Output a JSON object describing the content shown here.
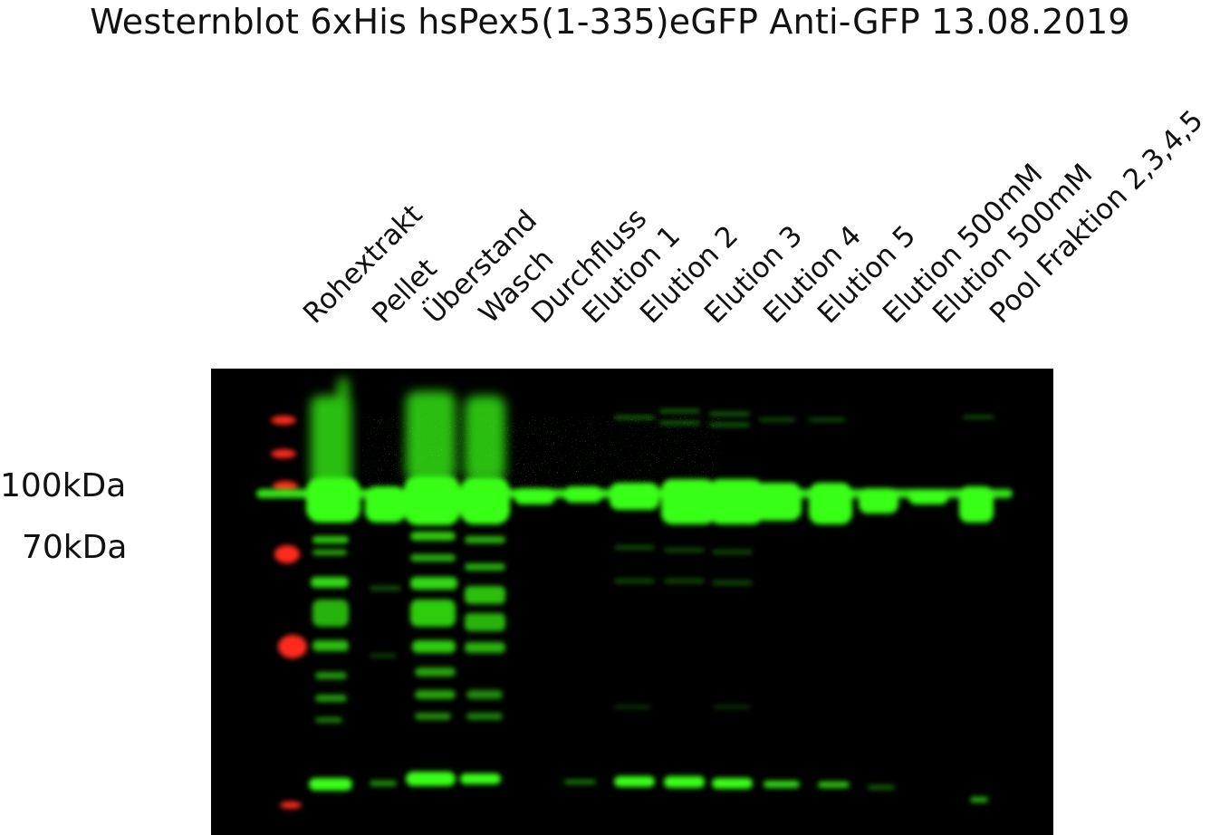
{
  "title": "Westernblot 6xHis hsPex5(1-335)eGFP Anti-GFP 13.08.2019",
  "lanes": [
    "Rohextrakt",
    "Pellet",
    "Überstand",
    "Wasch",
    "Durchfluss",
    "Elution 1",
    "Elution 2",
    "Elution 3",
    "Elution 4",
    "Elution 5",
    "Elution 500mM",
    "Elution 500mM",
    "Pool Fraktion 2,3,4,5"
  ],
  "markers": [
    "100kDa",
    "70kDa"
  ],
  "colors": {
    "signal": "#39ff14",
    "ladder": "#ff2a1a",
    "background": "#000000"
  }
}
